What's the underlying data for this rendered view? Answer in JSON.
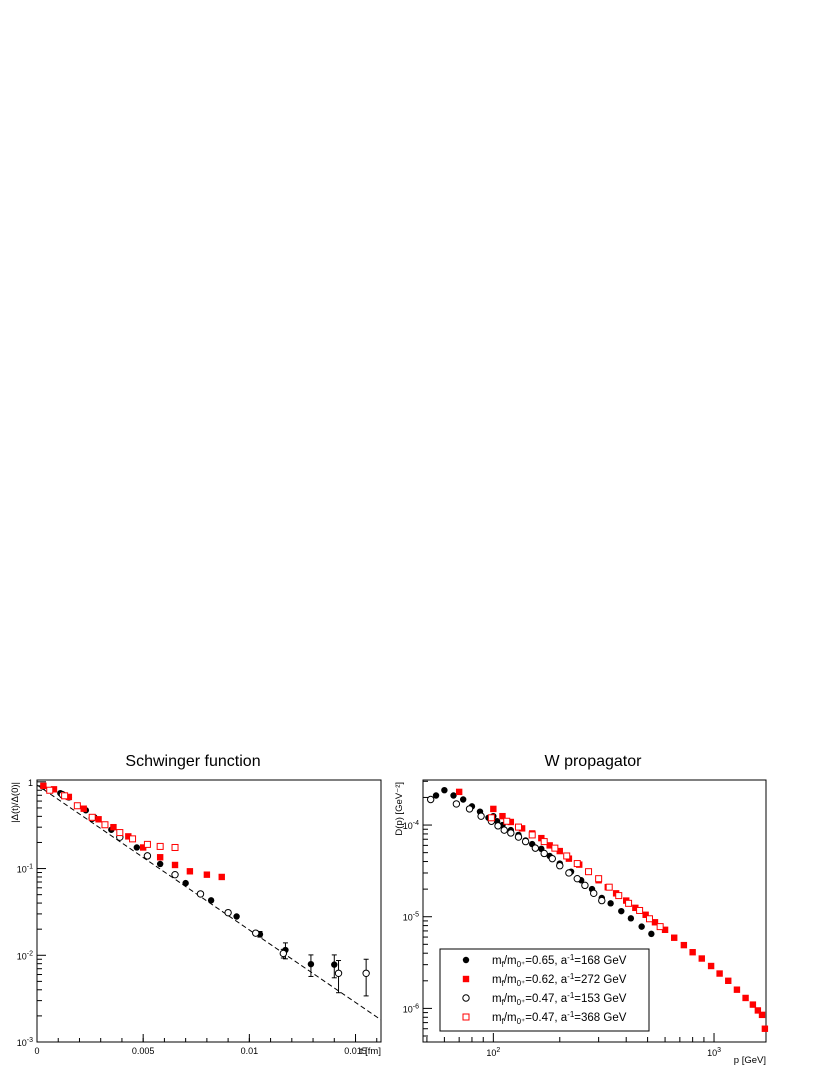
{
  "chart_data": [
    {
      "type": "scatter",
      "title": "Schwinger function",
      "xlabel": "t [fm]",
      "ylabel": "|Δ(t)/Δ(0)|",
      "xlim": [
        0,
        0.0162
      ],
      "ylim": [
        0.001,
        1.05
      ],
      "yscale": "log",
      "x_ticks": [
        {
          "v": 0,
          "label": "0"
        },
        {
          "v": 0.005,
          "label": "0.005"
        },
        {
          "v": 0.01,
          "label": "0.01"
        },
        {
          "v": 0.015,
          "label": "0.015"
        }
      ],
      "y_ticks": [
        {
          "v": 1,
          "base": "1",
          "exp": ""
        },
        {
          "v": 0.1,
          "base": "10",
          "exp": "-1"
        },
        {
          "v": 0.01,
          "base": "10",
          "exp": "-2"
        },
        {
          "v": 0.001,
          "base": "10",
          "exp": "-3"
        }
      ],
      "fit_line": {
        "style": "dashed",
        "from": [
          0,
          0.92
        ],
        "to": [
          0.0162,
          0.0018
        ]
      },
      "series": [
        {
          "marker": "filled-circle",
          "color": "#000000",
          "points": [
            [
              0.0003,
              0.88
            ],
            [
              0.0011,
              0.74
            ],
            [
              0.0015,
              0.66
            ],
            [
              0.0023,
              0.47
            ],
            [
              0.0027,
              0.39
            ],
            [
              0.0035,
              0.28
            ],
            [
              0.0047,
              0.175
            ],
            [
              0.0058,
              0.113
            ],
            [
              0.007,
              0.068
            ],
            [
              0.0082,
              0.043
            ],
            [
              0.0094,
              0.028
            ],
            [
              0.0105,
              0.0175
            ],
            [
              0.0117,
              0.0115
            ],
            [
              0.0129,
              0.0079
            ],
            [
              0.014,
              0.0078
            ]
          ],
          "errors": [
            0,
            0,
            0,
            0,
            0,
            0,
            0,
            0,
            0,
            0,
            0,
            0.0013,
            0.0024,
            0.0022,
            0.0023
          ]
        },
        {
          "marker": "filled-square",
          "color": "#ff0000",
          "points": [
            [
              0.0003,
              0.9
            ],
            [
              0.0008,
              0.82
            ],
            [
              0.0015,
              0.67
            ],
            [
              0.0022,
              0.49
            ],
            [
              0.0029,
              0.37
            ],
            [
              0.0036,
              0.3
            ],
            [
              0.0043,
              0.235
            ],
            [
              0.005,
              0.175
            ],
            [
              0.0058,
              0.135
            ],
            [
              0.0065,
              0.11
            ],
            [
              0.0072,
              0.093
            ],
            [
              0.008,
              0.085
            ],
            [
              0.0087,
              0.08
            ]
          ],
          "errors": []
        },
        {
          "marker": "open-circle",
          "color": "#000000",
          "points": [
            [
              0.0012,
              0.71
            ],
            [
              0.0026,
              0.38
            ],
            [
              0.0039,
              0.23
            ],
            [
              0.0052,
              0.14
            ],
            [
              0.0065,
              0.085
            ],
            [
              0.0077,
              0.051
            ],
            [
              0.009,
              0.031
            ],
            [
              0.0103,
              0.018
            ],
            [
              0.0116,
              0.0105
            ],
            [
              0.0142,
              0.0062
            ],
            [
              0.0155,
              0.0062
            ]
          ],
          "errors": [
            0,
            0,
            0,
            0,
            0,
            0,
            0,
            0,
            0.0012,
            0.0025,
            0.0028
          ]
        },
        {
          "marker": "open-square",
          "color": "#ff0000",
          "points": [
            [
              0.0006,
              0.8
            ],
            [
              0.0013,
              0.69
            ],
            [
              0.0019,
              0.53
            ],
            [
              0.0026,
              0.39
            ],
            [
              0.0032,
              0.32
            ],
            [
              0.0039,
              0.26
            ],
            [
              0.0045,
              0.22
            ],
            [
              0.0052,
              0.19
            ],
            [
              0.0058,
              0.18
            ],
            [
              0.0065,
              0.175
            ]
          ],
          "errors": []
        }
      ]
    },
    {
      "type": "scatter",
      "title": "W propagator",
      "xlabel": "p [GeV]",
      "ylabel": "D(p)  [GeV⁻²]",
      "xlim": [
        48,
        1720
      ],
      "ylim": [
        4.3e-07,
        0.00031
      ],
      "xscale": "log",
      "yscale": "log",
      "x_ticks": [
        {
          "v": 100,
          "base": "10",
          "exp": "2"
        },
        {
          "v": 1000,
          "base": "10",
          "exp": "3"
        }
      ],
      "y_ticks": [
        {
          "v": 0.0001,
          "base": "10",
          "exp": "-4"
        },
        {
          "v": 1e-05,
          "base": "10",
          "exp": "-5"
        },
        {
          "v": 1e-06,
          "base": "10",
          "exp": "-6"
        }
      ],
      "series": [
        {
          "name": "m_f/m_0+=0.65, a^-1=168 GeV",
          "marker": "filled-circle",
          "color": "#000000",
          "points": [
            [
              55,
              0.00021
            ],
            [
              60,
              0.00024
            ],
            [
              66,
              0.00021
            ],
            [
              73,
              0.00019
            ],
            [
              80,
              0.00016
            ],
            [
              87,
              0.00014
            ],
            [
              95,
              0.00012
            ],
            [
              100,
              0.000125
            ],
            [
              104,
              0.00011
            ],
            [
              110,
              0.0001
            ],
            [
              120,
              8.8e-05
            ],
            [
              130,
              7.8e-05
            ],
            [
              140,
              6.8e-05
            ],
            [
              150,
              6.2e-05
            ],
            [
              165,
              5.5e-05
            ],
            [
              180,
              4.6e-05
            ],
            [
              200,
              3.8e-05
            ],
            [
              225,
              3.1e-05
            ],
            [
              250,
              2.5e-05
            ],
            [
              280,
              2e-05
            ],
            [
              310,
              1.6e-05
            ],
            [
              340,
              1.4e-05
            ],
            [
              380,
              1.15e-05
            ],
            [
              420,
              9.6e-06
            ],
            [
              470,
              7.8e-06
            ],
            [
              520,
              6.5e-06
            ]
          ]
        },
        {
          "name": "m_f/m_0+=0.62, a^-1=272 GeV",
          "marker": "filled-square",
          "color": "#ff0000",
          "points": [
            [
              70,
              0.00023
            ],
            [
              100,
              0.00015
            ],
            [
              110,
              0.000125
            ],
            [
              120,
              0.000108
            ],
            [
              135,
              9.2e-05
            ],
            [
              150,
              8.1e-05
            ],
            [
              165,
              7.2e-05
            ],
            [
              180,
              6e-05
            ],
            [
              200,
              5.2e-05
            ],
            [
              220,
              4.3e-05
            ],
            [
              245,
              3.7e-05
            ],
            [
              270,
              3.1e-05
            ],
            [
              300,
              2.5e-05
            ],
            [
              330,
              2.1e-05
            ],
            [
              360,
              1.8e-05
            ],
            [
              400,
              1.5e-05
            ],
            [
              440,
              1.25e-05
            ],
            [
              490,
              1.05e-05
            ],
            [
              540,
              8.7e-06
            ],
            [
              600,
              7.2e-06
            ],
            [
              660,
              5.9e-06
            ],
            [
              730,
              4.9e-06
            ],
            [
              800,
              4.1e-06
            ],
            [
              880,
              3.5e-06
            ],
            [
              970,
              2.9e-06
            ],
            [
              1060,
              2.4e-06
            ],
            [
              1160,
              2e-06
            ],
            [
              1270,
              1.6e-06
            ],
            [
              1390,
              1.3e-06
            ],
            [
              1500,
              1.1e-06
            ],
            [
              1580,
              9.5e-07
            ],
            [
              1650,
              8.5e-07
            ],
            [
              1700,
              6e-07
            ]
          ]
        },
        {
          "name": "m_f/m_0+=0.47, a^-1=153 GeV",
          "marker": "open-circle",
          "color": "#000000",
          "points": [
            [
              52,
              0.00019
            ],
            [
              68,
              0.00017
            ],
            [
              78,
              0.00015
            ],
            [
              88,
              0.000125
            ],
            [
              98,
              0.00011
            ],
            [
              105,
              9.8e-05
            ],
            [
              112,
              8.8e-05
            ],
            [
              120,
              8.2e-05
            ],
            [
              130,
              7.4e-05
            ],
            [
              140,
              6.6e-05
            ],
            [
              155,
              5.6e-05
            ],
            [
              170,
              4.9e-05
            ],
            [
              185,
              4.3e-05
            ],
            [
              200,
              3.6e-05
            ],
            [
              220,
              3e-05
            ],
            [
              240,
              2.6e-05
            ],
            [
              260,
              2.2e-05
            ],
            [
              285,
              1.8e-05
            ],
            [
              310,
              1.5e-05
            ]
          ]
        },
        {
          "name": "m_f/m_0+=0.47, a^-1=368 GeV",
          "marker": "open-square",
          "color": "#ff0000",
          "points": [
            [
              98,
              0.00012
            ],
            [
              115,
              0.00011
            ],
            [
              130,
              9.5e-05
            ],
            [
              150,
              7.8e-05
            ],
            [
              170,
              6.6e-05
            ],
            [
              190,
              5.6e-05
            ],
            [
              215,
              4.6e-05
            ],
            [
              240,
              3.8e-05
            ],
            [
              270,
              3.1e-05
            ],
            [
              300,
              2.6e-05
            ],
            [
              335,
              2.1e-05
            ],
            [
              370,
              1.7e-05
            ],
            [
              410,
              1.4e-05
            ],
            [
              460,
              1.17e-05
            ],
            [
              510,
              9.5e-06
            ],
            [
              570,
              7.8e-06
            ]
          ]
        }
      ],
      "legend": {
        "position": "bottom-left",
        "entries": [
          {
            "marker": "filled-circle",
            "color": "#000000",
            "text": {
              "a": "m",
              "b": "f",
              "c": "/m",
              "d": "0⁺",
              "e": "=0.65, a",
              "f": "-1",
              "g": "=168 GeV"
            }
          },
          {
            "marker": "filled-square",
            "color": "#ff0000",
            "text": {
              "a": "m",
              "b": "f",
              "c": "/m",
              "d": "0⁺",
              "e": "=0.62, a",
              "f": "-1",
              "g": "=272 GeV"
            }
          },
          {
            "marker": "open-circle",
            "color": "#000000",
            "text": {
              "a": "m",
              "b": "f",
              "c": "/m",
              "d": "0⁺",
              "e": "=0.47, a",
              "f": "-1",
              "g": "=153 GeV"
            }
          },
          {
            "marker": "open-square",
            "color": "#ff0000",
            "text": {
              "a": "m",
              "b": "f",
              "c": "/m",
              "d": "0⁺",
              "e": "=0.47, a",
              "f": "-1",
              "g": "=368 GeV"
            }
          }
        ]
      }
    }
  ]
}
